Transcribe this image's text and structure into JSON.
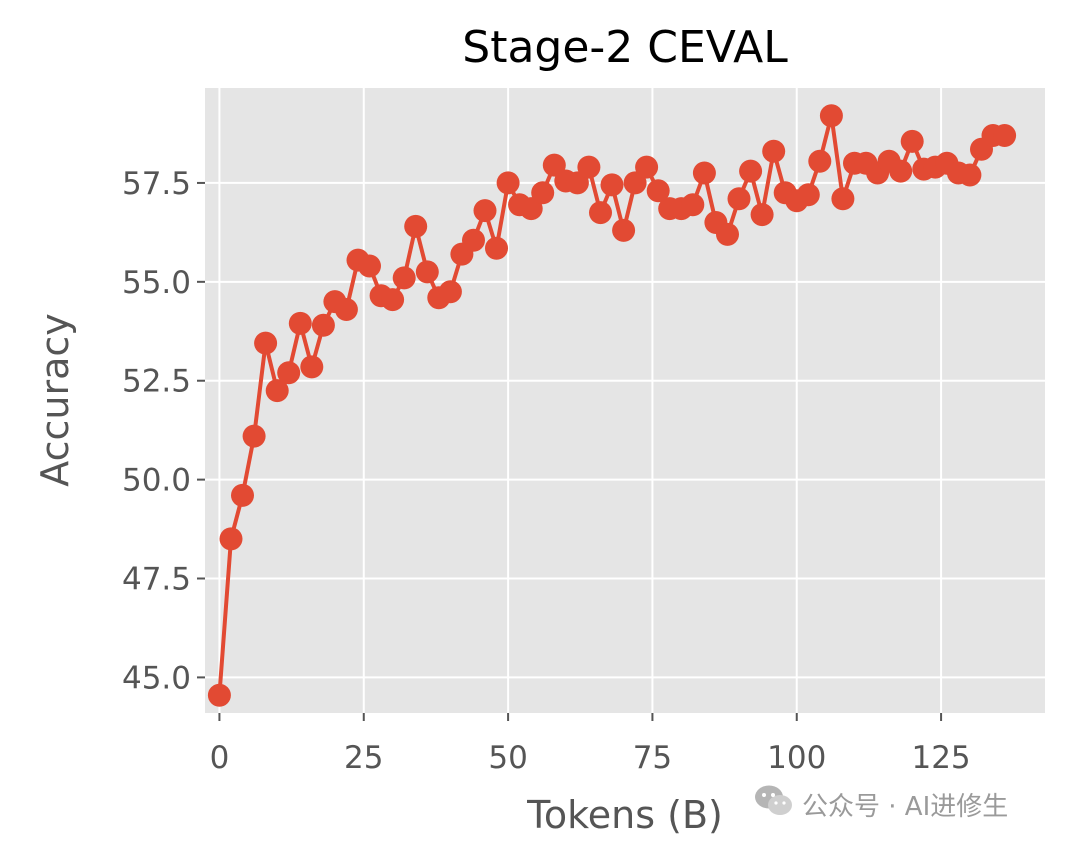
{
  "chart_data": {
    "type": "line",
    "title": "Stage-2 CEVAL",
    "xlabel": "Tokens (B)",
    "ylabel": "Accuracy",
    "xlim": [
      -2.5,
      143
    ],
    "ylim": [
      44.1,
      59.9
    ],
    "xticks": [
      0,
      25,
      50,
      75,
      100,
      125
    ],
    "yticks": [
      45.0,
      47.5,
      50.0,
      52.5,
      55.0,
      57.5
    ],
    "xtick_labels": [
      "0",
      "25",
      "50",
      "75",
      "100",
      "125"
    ],
    "ytick_labels": [
      "45.0",
      "47.5",
      "50.0",
      "52.5",
      "55.0",
      "57.5"
    ],
    "grid": true,
    "legend": false,
    "series": [
      {
        "color": "#E24A33",
        "marker": "circle",
        "x": [
          0,
          2,
          4,
          6,
          8,
          10,
          12,
          14,
          16,
          18,
          20,
          22,
          24,
          26,
          28,
          30,
          32,
          34,
          36,
          38,
          40,
          42,
          44,
          46,
          48,
          50,
          52,
          54,
          56,
          58,
          60,
          62,
          64,
          66,
          68,
          70,
          72,
          74,
          76,
          78,
          80,
          82,
          84,
          86,
          88,
          90,
          92,
          94,
          96,
          98,
          100,
          102,
          104,
          106,
          108,
          110,
          112,
          114,
          116,
          118,
          120,
          122,
          124,
          126,
          128,
          130,
          132,
          134,
          136
        ],
        "y": [
          44.55,
          48.5,
          49.6,
          51.1,
          53.45,
          52.25,
          52.7,
          53.95,
          52.85,
          53.9,
          54.5,
          54.3,
          55.55,
          55.4,
          54.65,
          54.55,
          55.1,
          56.4,
          55.25,
          54.6,
          54.75,
          55.7,
          56.05,
          56.8,
          55.85,
          57.5,
          56.95,
          56.85,
          57.25,
          57.95,
          57.55,
          57.5,
          57.9,
          56.75,
          57.45,
          56.3,
          57.5,
          57.9,
          57.3,
          56.85,
          56.85,
          56.95,
          57.75,
          56.5,
          56.2,
          57.1,
          57.8,
          56.7,
          58.3,
          57.25,
          57.05,
          57.2,
          58.05,
          59.2,
          57.1,
          58.0,
          58.0,
          57.75,
          58.05,
          57.8,
          58.55,
          57.85,
          57.9,
          58.0,
          57.75,
          57.7,
          58.35,
          58.7,
          58.7
        ]
      }
    ]
  },
  "watermark": {
    "icon": "wechat-icon",
    "text": "公众号 · AI进修生"
  },
  "colors": {
    "plot_background": "#E5E5E5",
    "grid": "#FFFFFF",
    "line": "#E24A33",
    "tick_text": "#555555"
  }
}
